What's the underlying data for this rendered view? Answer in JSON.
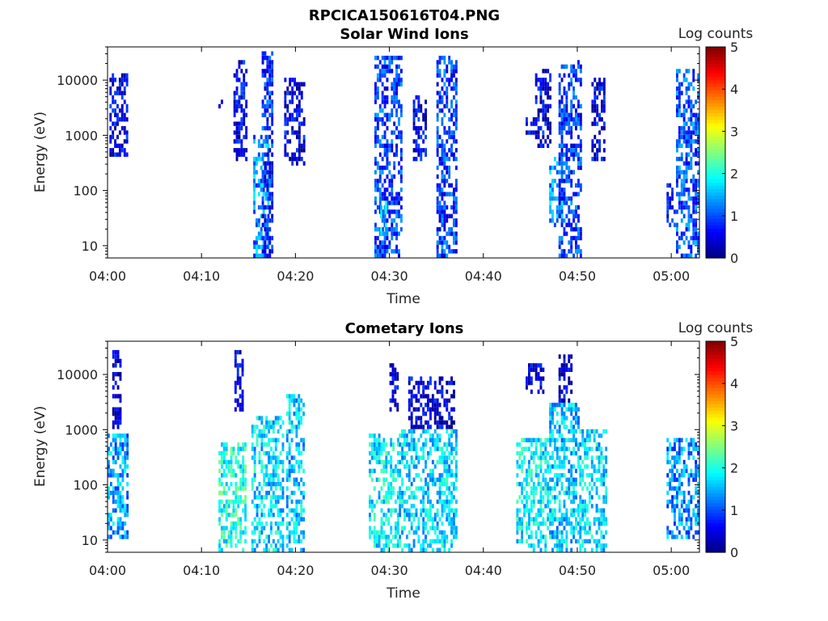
{
  "figure_title": "RPCICA150616T04.PNG",
  "chart_data": [
    {
      "type": "heatmap",
      "title": "Solar Wind Ions",
      "xlabel": "Time",
      "ylabel": "Energy (eV)",
      "x_ticks": [
        "04:00",
        "04:10",
        "04:20",
        "04:30",
        "04:40",
        "04:50",
        "05:00"
      ],
      "x_tick_minutes": [
        0,
        10,
        20,
        30,
        40,
        50,
        60
      ],
      "xlim_minutes": [
        0,
        63
      ],
      "y_scale": "log",
      "ylim": [
        6,
        40000
      ],
      "y_ticks": [
        "10",
        "100",
        "1000",
        "10000"
      ],
      "y_tick_values": [
        10,
        100,
        1000,
        10000
      ],
      "colorbar": {
        "label": "Log counts",
        "ticks": [
          "0",
          "1",
          "2",
          "3",
          "4",
          "5"
        ],
        "range": [
          0,
          5
        ]
      },
      "bursts": [
        {
          "t_start": 0.2,
          "t_end": 2.0,
          "e_min": 400,
          "e_max": 12000,
          "level": 0.5
        },
        {
          "t_start": 11.8,
          "t_end": 12.2,
          "e_min": 3000,
          "e_max": 4000,
          "level": 0.4
        },
        {
          "t_start": 13.4,
          "t_end": 14.8,
          "e_min": 300,
          "e_max": 20000,
          "level": 0.5
        },
        {
          "t_start": 15.5,
          "t_end": 17.2,
          "e_min": 6,
          "e_max": 1000,
          "level": 1.3
        },
        {
          "t_start": 16.4,
          "t_end": 17.6,
          "e_min": 6,
          "e_max": 30000,
          "level": 0.8
        },
        {
          "t_start": 18.8,
          "t_end": 21.0,
          "e_min": 250,
          "e_max": 10000,
          "level": 0.5
        },
        {
          "t_start": 28.4,
          "t_end": 31.4,
          "e_min": 6,
          "e_max": 25000,
          "level": 0.9
        },
        {
          "t_start": 29.0,
          "t_end": 29.6,
          "e_min": 15,
          "e_max": 60,
          "level": 1.6
        },
        {
          "t_start": 32.5,
          "t_end": 34.0,
          "e_min": 300,
          "e_max": 5000,
          "level": 0.5
        },
        {
          "t_start": 35.0,
          "t_end": 37.2,
          "e_min": 6,
          "e_max": 25000,
          "level": 0.9
        },
        {
          "t_start": 44.5,
          "t_end": 45.5,
          "e_min": 1000,
          "e_max": 2000,
          "level": 0.4
        },
        {
          "t_start": 45.5,
          "t_end": 47.2,
          "e_min": 500,
          "e_max": 15000,
          "level": 0.5
        },
        {
          "t_start": 47.0,
          "t_end": 48.5,
          "e_min": 20,
          "e_max": 400,
          "level": 1.4
        },
        {
          "t_start": 48.0,
          "t_end": 50.3,
          "e_min": 6,
          "e_max": 20000,
          "level": 0.9
        },
        {
          "t_start": 51.5,
          "t_end": 53.0,
          "e_min": 300,
          "e_max": 10000,
          "level": 0.5
        },
        {
          "t_start": 59.5,
          "t_end": 60.5,
          "e_min": 20,
          "e_max": 120,
          "level": 0.7
        },
        {
          "t_start": 60.5,
          "t_end": 62.9,
          "e_min": 6,
          "e_max": 15000,
          "level": 1.0
        }
      ]
    },
    {
      "type": "heatmap",
      "title": "Cometary Ions",
      "xlabel": "Time",
      "ylabel": "Energy (eV)",
      "x_ticks": [
        "04:00",
        "04:10",
        "04:20",
        "04:30",
        "04:40",
        "04:50",
        "05:00"
      ],
      "x_tick_minutes": [
        0,
        10,
        20,
        30,
        40,
        50,
        60
      ],
      "xlim_minutes": [
        0,
        63
      ],
      "y_scale": "log",
      "ylim": [
        6,
        40000
      ],
      "y_ticks": [
        "10",
        "100",
        "1000",
        "10000"
      ],
      "y_tick_values": [
        10,
        100,
        1000,
        10000
      ],
      "colorbar": {
        "label": "Log counts",
        "ticks": [
          "0",
          "1",
          "2",
          "3",
          "4",
          "5"
        ],
        "range": [
          0,
          5
        ]
      },
      "bursts": [
        {
          "t_start": 0.0,
          "t_end": 2.2,
          "e_min": 10,
          "e_max": 800,
          "level": 1.4
        },
        {
          "t_start": 0.5,
          "t_end": 1.5,
          "e_min": 1000,
          "e_max": 25000,
          "level": 0.4
        },
        {
          "t_start": 11.8,
          "t_end": 14.8,
          "e_min": 6,
          "e_max": 500,
          "level": 2.0
        },
        {
          "t_start": 13.5,
          "t_end": 14.5,
          "e_min": 2000,
          "e_max": 25000,
          "level": 0.4
        },
        {
          "t_start": 15.3,
          "t_end": 18.8,
          "e_min": 6,
          "e_max": 1500,
          "level": 1.7
        },
        {
          "t_start": 19.0,
          "t_end": 21.0,
          "e_min": 6,
          "e_max": 4000,
          "level": 1.6
        },
        {
          "t_start": 27.8,
          "t_end": 31.0,
          "e_min": 6,
          "e_max": 800,
          "level": 1.8
        },
        {
          "t_start": 30.0,
          "t_end": 31.0,
          "e_min": 2000,
          "e_max": 15000,
          "level": 0.4
        },
        {
          "t_start": 31.0,
          "t_end": 37.2,
          "e_min": 6,
          "e_max": 1000,
          "level": 1.7
        },
        {
          "t_start": 32.0,
          "t_end": 37.0,
          "e_min": 1000,
          "e_max": 8000,
          "level": 0.4
        },
        {
          "t_start": 43.5,
          "t_end": 47.0,
          "e_min": 6,
          "e_max": 600,
          "level": 1.8
        },
        {
          "t_start": 44.5,
          "t_end": 46.5,
          "e_min": 4000,
          "e_max": 15000,
          "level": 0.4
        },
        {
          "t_start": 47.0,
          "t_end": 50.2,
          "e_min": 6,
          "e_max": 3000,
          "level": 1.6
        },
        {
          "t_start": 48.0,
          "t_end": 49.5,
          "e_min": 3000,
          "e_max": 20000,
          "level": 0.4
        },
        {
          "t_start": 50.2,
          "t_end": 53.0,
          "e_min": 6,
          "e_max": 1000,
          "level": 1.7
        },
        {
          "t_start": 59.5,
          "t_end": 62.9,
          "e_min": 10,
          "e_max": 600,
          "level": 1.3
        }
      ]
    }
  ]
}
